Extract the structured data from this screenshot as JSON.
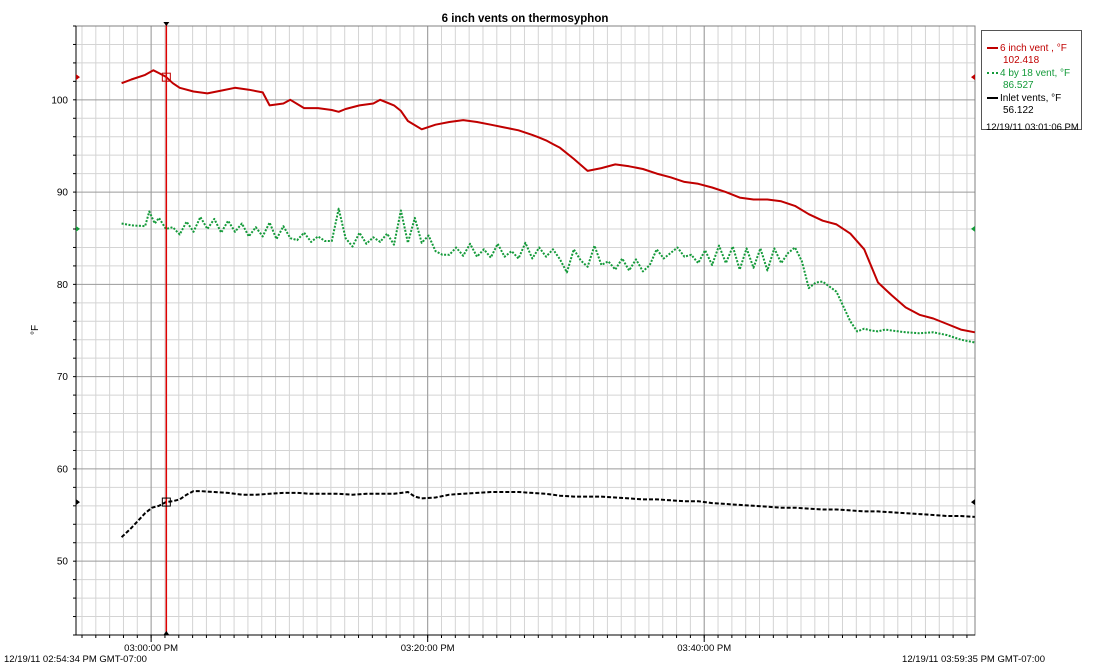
{
  "chart_data": {
    "type": "line",
    "title": "6 inch vents on thermosyphon",
    "ylabel": "°F",
    "xlabel": "",
    "ylim": [
      42,
      108
    ],
    "xlim_minutes": [
      0,
      65.0167
    ],
    "time_start_label": "12/19/11 02:54:34 PM GMT-07:00",
    "time_end_label": "12/19/11 03:59:35 PM GMT-07:00",
    "grid": true,
    "legend_position": "top-right outside",
    "y_ticks": [
      50,
      60,
      70,
      80,
      90,
      100
    ],
    "x_ticks": [
      {
        "label": "03:00:00 PM",
        "minute": 5.433
      },
      {
        "label": "03:20:00 PM",
        "minute": 25.433
      },
      {
        "label": "03:40:00 PM",
        "minute": 45.433
      }
    ],
    "cursor": {
      "label": "12/19/11 03:01:06 PM",
      "minute": 6.533
    },
    "series": [
      {
        "name": "6 inch vent , °F",
        "value_label": "102.418",
        "color": "#c00000",
        "style": "solid",
        "x_minutes": [
          3.3,
          4.0,
          5.0,
          5.6,
          6.0,
          6.5,
          7.0,
          7.5,
          8.5,
          9.5,
          10.5,
          11.5,
          12.5,
          13.5,
          14.0,
          15.0,
          15.5,
          16.5,
          17.5,
          18.5,
          19.0,
          19.5,
          20.5,
          21.5,
          22.0,
          23.0,
          23.5,
          24.0,
          25.0,
          26.0,
          27.0,
          28.0,
          29.0,
          30.0,
          31.0,
          32.0,
          33.0,
          33.5,
          34.0,
          34.5,
          35.0,
          36.0,
          37.0,
          38.0,
          39.0,
          40.0,
          41.0,
          42.0,
          43.0,
          44.0,
          45.0,
          46.0,
          47.0,
          48.0,
          49.0,
          50.0,
          51.0,
          52.0,
          53.0,
          54.0,
          55.0,
          56.0,
          57.0,
          58.0,
          59.0,
          60.0,
          61.0,
          62.0,
          63.0,
          64.0,
          65.0
        ],
        "values": [
          101.8,
          102.2,
          102.7,
          103.2,
          102.9,
          102.5,
          101.8,
          101.3,
          100.9,
          100.7,
          101.0,
          101.3,
          101.1,
          100.8,
          99.4,
          99.6,
          100.0,
          99.1,
          99.1,
          98.9,
          98.7,
          99.0,
          99.4,
          99.6,
          100.0,
          99.4,
          98.8,
          97.7,
          96.8,
          97.3,
          97.6,
          97.8,
          97.6,
          97.3,
          97.0,
          96.7,
          96.2,
          95.9,
          95.6,
          95.2,
          94.8,
          93.6,
          92.3,
          92.6,
          93.0,
          92.8,
          92.5,
          92.0,
          91.6,
          91.1,
          90.9,
          90.5,
          90.0,
          89.4,
          89.2,
          89.2,
          89.0,
          88.5,
          87.6,
          86.9,
          86.5,
          85.5,
          83.8,
          80.2,
          78.8,
          77.5,
          76.7,
          76.3,
          75.7,
          75.1,
          74.8
        ]
      },
      {
        "name": "4 by 18 vent, °F",
        "value_label": "86.527",
        "color": "#149a3a",
        "style": "dotted",
        "x_minutes": [
          3.3,
          4.0,
          5.0,
          5.3,
          5.7,
          6.0,
          6.5,
          7.0,
          7.5,
          8.0,
          8.5,
          9.0,
          9.5,
          10.0,
          10.5,
          11.0,
          11.5,
          12.0,
          12.5,
          13.0,
          13.5,
          14.0,
          14.5,
          15.0,
          15.5,
          16.0,
          16.5,
          17.0,
          17.5,
          18.0,
          18.5,
          19.0,
          19.5,
          20.0,
          20.5,
          21.0,
          21.5,
          22.0,
          22.5,
          23.0,
          23.5,
          24.0,
          24.5,
          25.0,
          25.5,
          26.0,
          26.5,
          27.0,
          27.5,
          28.0,
          28.5,
          29.0,
          29.5,
          30.0,
          30.5,
          31.0,
          31.5,
          32.0,
          32.5,
          33.0,
          33.5,
          34.0,
          34.5,
          35.0,
          35.5,
          36.0,
          36.5,
          37.0,
          37.5,
          38.0,
          38.5,
          39.0,
          39.5,
          40.0,
          40.5,
          41.0,
          41.5,
          42.0,
          42.5,
          43.0,
          43.5,
          44.0,
          44.5,
          45.0,
          45.5,
          46.0,
          46.5,
          47.0,
          47.5,
          48.0,
          48.5,
          49.0,
          49.5,
          50.0,
          50.5,
          51.0,
          51.5,
          52.0,
          52.5,
          53.0,
          53.5,
          54.0,
          55.0,
          56.0,
          56.5,
          57.0,
          57.5,
          58.0,
          58.5,
          59.0,
          60.0,
          61.0,
          62.0,
          63.0,
          64.0,
          65.0
        ],
        "values": [
          86.6,
          86.4,
          86.3,
          87.9,
          86.6,
          87.2,
          86.0,
          86.2,
          85.4,
          86.8,
          85.7,
          87.3,
          86.0,
          87.1,
          85.6,
          86.9,
          85.7,
          86.6,
          85.2,
          86.2,
          85.2,
          86.7,
          84.9,
          86.3,
          85.0,
          84.8,
          85.6,
          84.6,
          85.2,
          84.7,
          84.7,
          88.2,
          85.0,
          84.1,
          85.6,
          84.4,
          85.1,
          84.6,
          85.5,
          84.3,
          88.0,
          84.5,
          87.2,
          84.5,
          85.3,
          83.6,
          83.2,
          83.2,
          84.0,
          83.1,
          84.4,
          83.0,
          83.8,
          82.9,
          84.4,
          83.0,
          83.6,
          82.8,
          84.5,
          82.8,
          84.0,
          83.0,
          83.8,
          82.7,
          81.3,
          83.8,
          82.6,
          81.9,
          84.2,
          82.1,
          82.5,
          81.6,
          82.8,
          81.5,
          82.7,
          81.4,
          82.1,
          83.8,
          82.8,
          83.4,
          84.0,
          83.0,
          83.2,
          82.3,
          83.7,
          82.1,
          84.2,
          82.3,
          84.1,
          81.6,
          83.9,
          81.8,
          83.9,
          81.5,
          83.9,
          82.3,
          83.4,
          84.0,
          82.5,
          79.6,
          80.2,
          80.3,
          79.2,
          76.0,
          74.9,
          75.2,
          75.0,
          74.9,
          75.1,
          75.0,
          74.8,
          74.7,
          74.8,
          74.5,
          74.0,
          73.7
        ]
      },
      {
        "name": "Inlet vents, °F",
        "value_label": "56.122",
        "color": "#000000",
        "style": "dashed",
        "x_minutes": [
          3.3,
          4.0,
          5.0,
          5.5,
          6.0,
          6.5,
          7.0,
          7.5,
          8.0,
          8.5,
          9.0,
          10.0,
          11.0,
          12.0,
          13.0,
          14.0,
          15.0,
          16.0,
          17.0,
          18.0,
          19.0,
          20.0,
          21.0,
          22.0,
          23.0,
          24.0,
          24.5,
          25.0,
          26.0,
          27.0,
          28.0,
          29.0,
          30.0,
          31.0,
          32.0,
          33.0,
          34.0,
          35.0,
          36.0,
          37.0,
          38.0,
          39.0,
          40.0,
          41.0,
          42.0,
          43.0,
          44.0,
          45.0,
          46.0,
          47.0,
          48.0,
          49.0,
          50.0,
          51.0,
          52.0,
          53.0,
          54.0,
          55.0,
          56.0,
          57.0,
          58.0,
          59.0,
          60.0,
          61.0,
          62.0,
          63.0,
          64.0,
          65.0
        ],
        "values": [
          52.6,
          53.6,
          55.2,
          55.8,
          56.0,
          56.4,
          56.5,
          56.7,
          57.2,
          57.6,
          57.6,
          57.5,
          57.4,
          57.2,
          57.2,
          57.3,
          57.4,
          57.4,
          57.3,
          57.3,
          57.3,
          57.2,
          57.3,
          57.3,
          57.3,
          57.5,
          57.0,
          56.8,
          56.9,
          57.2,
          57.3,
          57.4,
          57.5,
          57.5,
          57.5,
          57.4,
          57.3,
          57.1,
          57.0,
          57.0,
          57.0,
          56.9,
          56.8,
          56.7,
          56.7,
          56.6,
          56.5,
          56.5,
          56.3,
          56.2,
          56.1,
          56.0,
          55.9,
          55.8,
          55.8,
          55.7,
          55.6,
          55.6,
          55.5,
          55.4,
          55.4,
          55.3,
          55.2,
          55.1,
          55.0,
          54.9,
          54.9,
          54.8
        ]
      }
    ]
  }
}
